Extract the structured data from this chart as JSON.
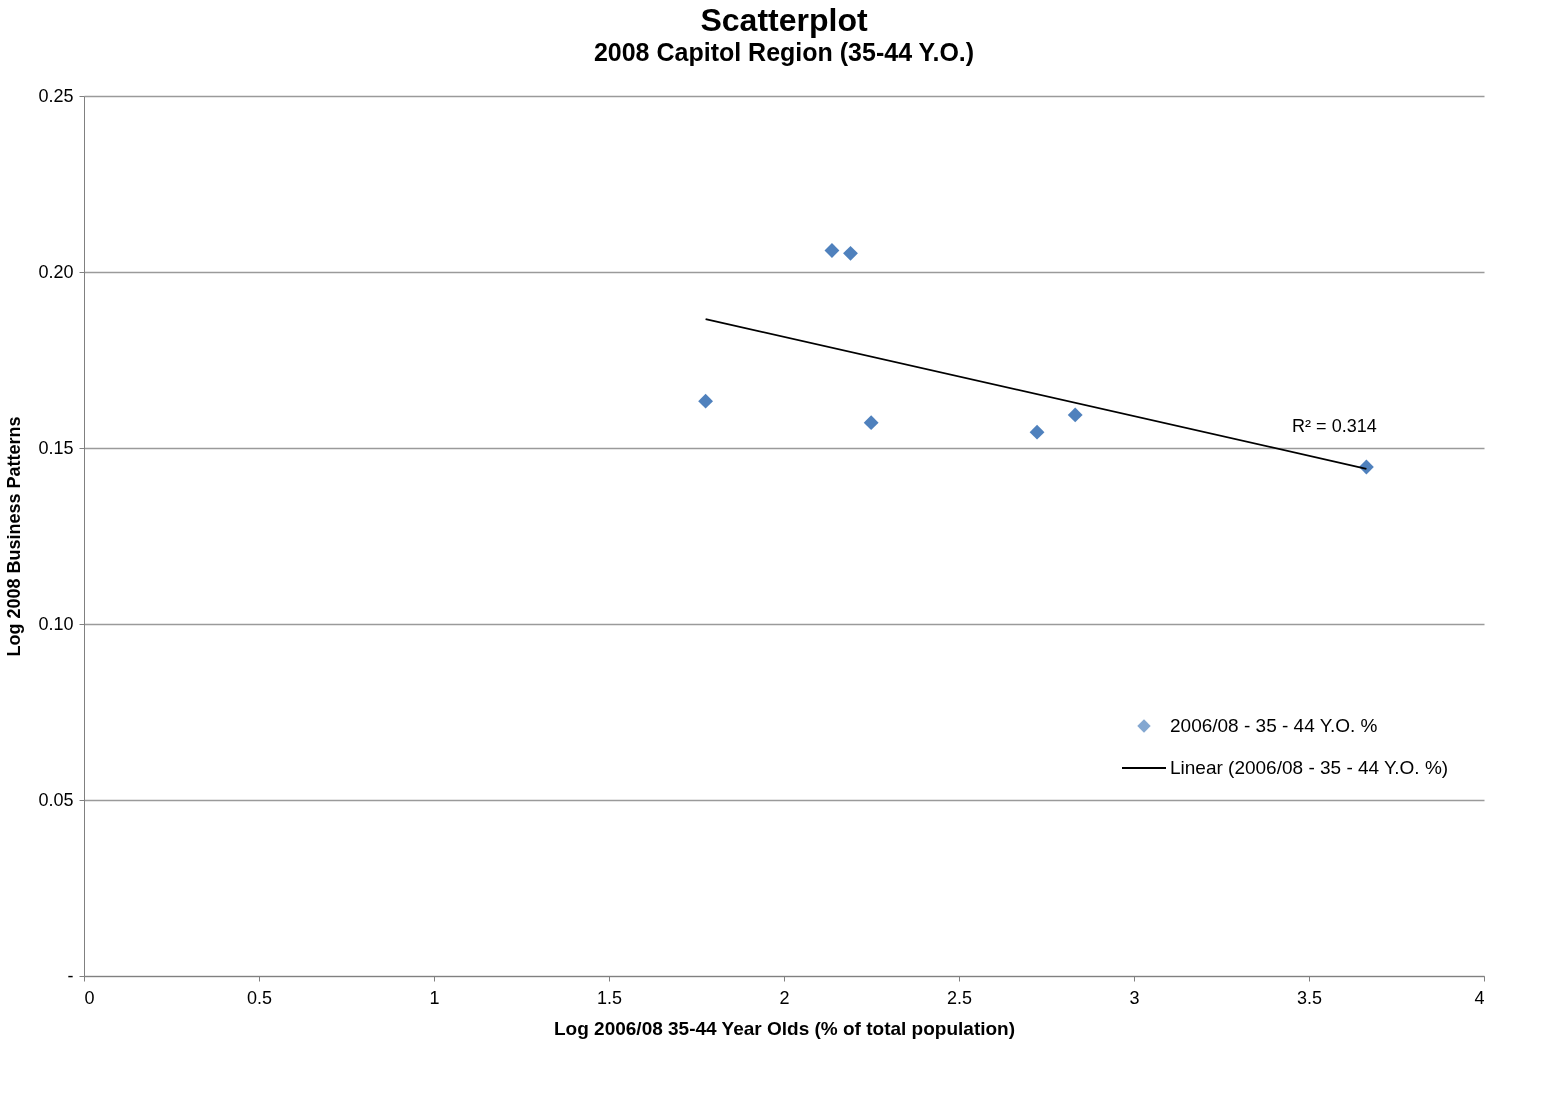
{
  "chart_data": {
    "type": "scatter",
    "title": "Scatterplot",
    "subtitle": "2008 Capitol Region (35-44 Y.O.)",
    "xlabel": "Log 2006/08 35-44 Year Olds (% of total population)",
    "ylabel": "Log 2008 Business Patterns",
    "series": [
      {
        "name": "2006/08 - 35 - 44 Y.O. %",
        "color": "#4f81bd",
        "x": [
          1.776,
          2.137,
          2.19,
          2.249,
          2.723,
          2.832,
          3.664
        ],
        "values": [
          0.1633,
          0.2061,
          0.2053,
          0.1572,
          0.1545,
          0.1594,
          0.1446
        ]
      },
      {
        "name": "Linear (2006/08 - 35 - 44 Y.O. %)",
        "type": "line",
        "marker": "none",
        "color": "#000000",
        "x": [
          1.776,
          3.664
        ],
        "values": [
          0.1866,
          0.1441
        ]
      }
    ],
    "annotations": [
      "R² = 0.314"
    ],
    "xlim": [
      0,
      4
    ],
    "ylim": [
      0,
      0.25
    ],
    "xticks": [
      0,
      0.5,
      1,
      1.5,
      2,
      2.5,
      3,
      3.5,
      4
    ],
    "yticks": [
      {
        "value": 0,
        "label": "-"
      },
      0.05,
      {
        "value": 0.1,
        "label": "0.10"
      },
      0.15,
      {
        "value": 0.2,
        "label": "0.20"
      },
      0.25
    ],
    "grid": "y",
    "legend": "bottom right",
    "marker": "diamond",
    "line_style": "solid"
  }
}
